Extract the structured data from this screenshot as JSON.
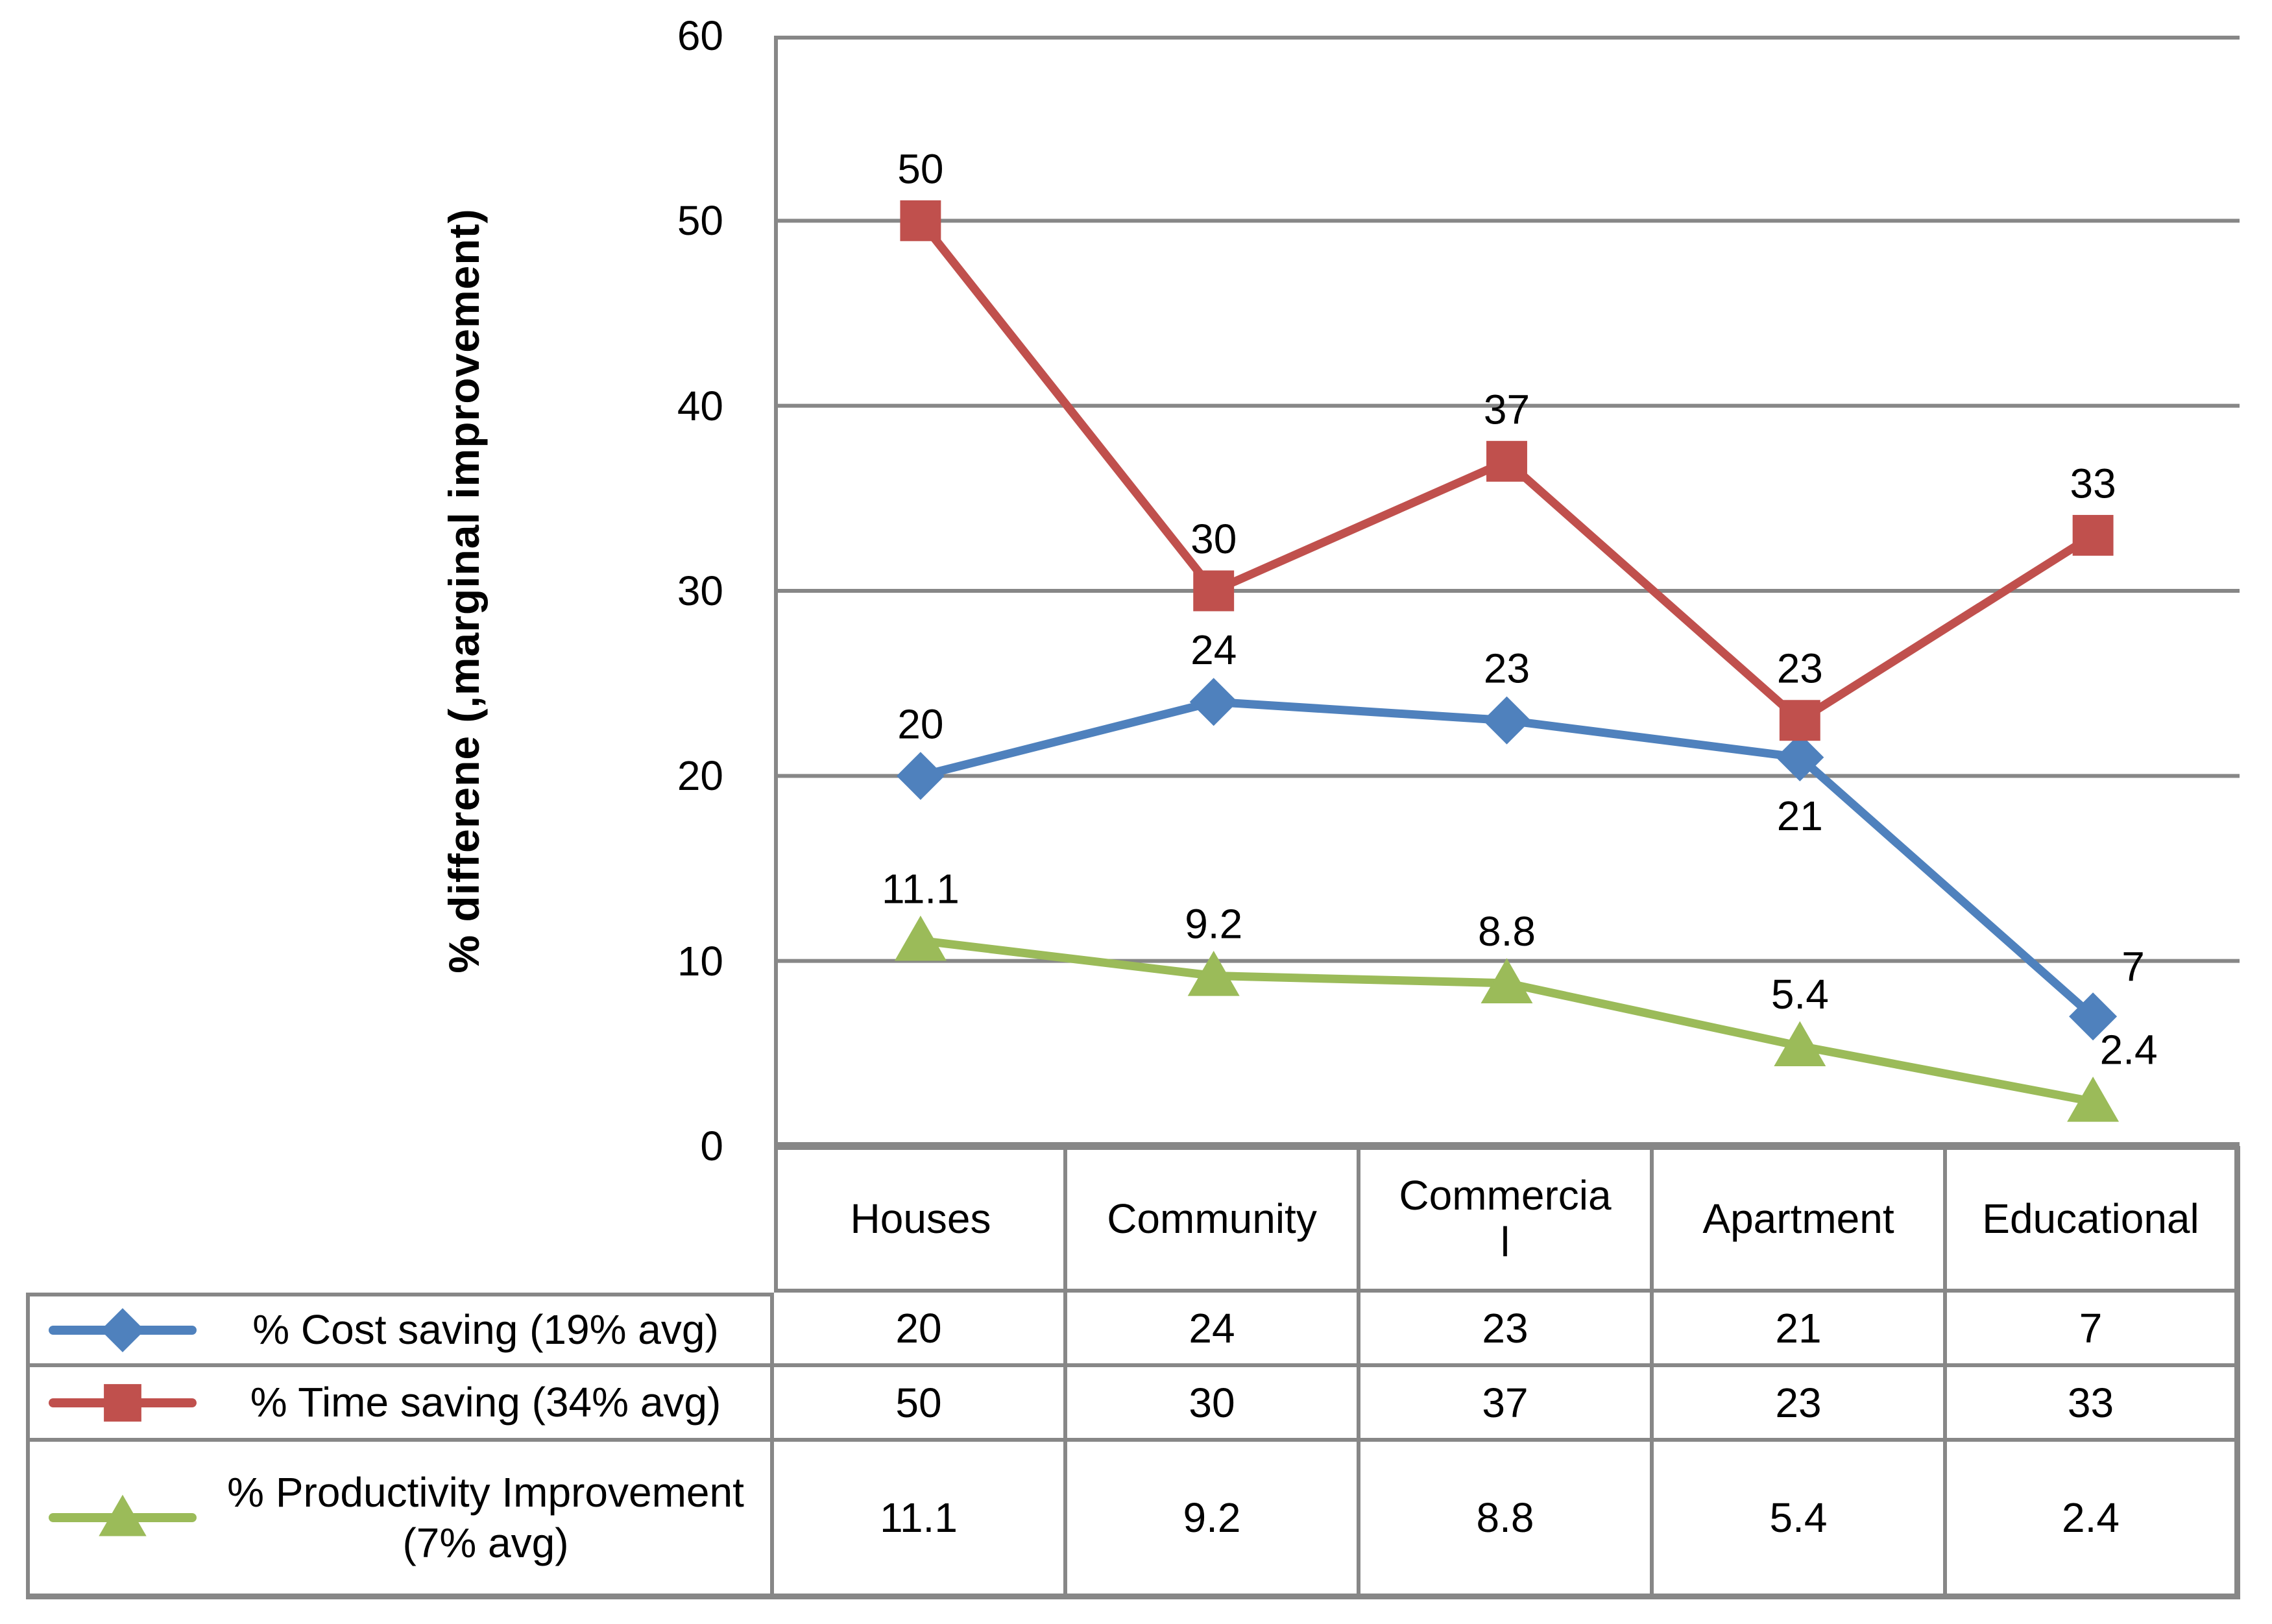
{
  "chart_data": {
    "type": "line",
    "categories": [
      "Houses",
      "Community",
      "Commercial",
      "Apartment",
      "Educational"
    ],
    "series": [
      {
        "name": "% Cost saving (19% avg)",
        "marker": "diamond",
        "color": "#4F81BD",
        "values": [
          20,
          24,
          23,
          21,
          7
        ]
      },
      {
        "name": "% Time saving (34% avg)",
        "marker": "square",
        "color": "#C0504D",
        "values": [
          50,
          30,
          37,
          23,
          33
        ]
      },
      {
        "name": "% Productivity Improvement (7% avg)",
        "marker": "triangle",
        "color": "#9BBB59",
        "values": [
          11.1,
          9.2,
          8.8,
          5.4,
          2.4
        ]
      }
    ],
    "title": "",
    "xlabel": "",
    "ylabel": "% differene (,marginal improvement)",
    "ylim": [
      0,
      60
    ],
    "ytick_step": 10,
    "y_tick_labels": [
      "0",
      "10",
      "20",
      "30",
      "40",
      "50",
      "60"
    ],
    "grid": "horizontal",
    "data_labels": true,
    "legend_position": "table-left"
  },
  "table": {
    "headers": [
      "Houses",
      "Community",
      "Commercia\nl",
      "Apartment",
      "Educational"
    ],
    "rows": [
      {
        "label": "% Cost saving (19% avg)",
        "values": [
          "20",
          "24",
          "23",
          "21",
          "7"
        ]
      },
      {
        "label": "% Time saving (34% avg)",
        "values": [
          "50",
          "30",
          "37",
          "23",
          "33"
        ]
      },
      {
        "label": "% Productivity Improvement (7% avg)",
        "values": [
          "11.1",
          "9.2",
          "8.8",
          "5.4",
          "2.4"
        ]
      }
    ]
  },
  "colors": {
    "grid_and_borders": "#878787",
    "text": "#000000",
    "background": "#ffffff",
    "series_blue": "#4F81BD",
    "series_red": "#C0504D",
    "series_green": "#9BBB59"
  }
}
